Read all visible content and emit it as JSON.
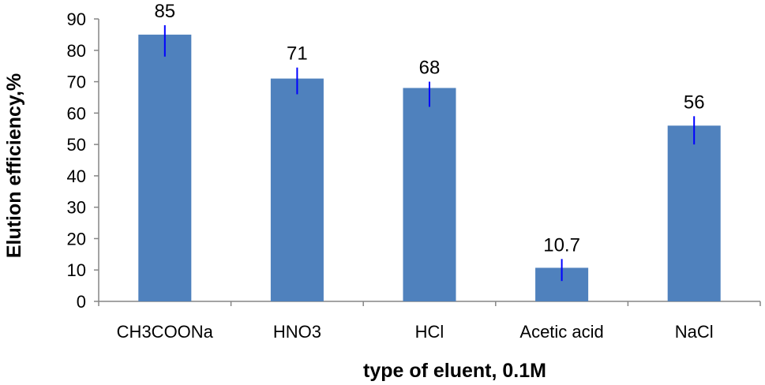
{
  "chart_data": {
    "type": "bar",
    "title": "",
    "xlabel": "type of eluent, 0.1M",
    "ylabel": "Elution efficiency,%",
    "categories": [
      "CH3COONa",
      "HNO3",
      "HCl",
      "Acetic acid",
      "NaCl"
    ],
    "values": [
      85,
      71,
      68,
      10.7,
      56
    ],
    "data_labels": [
      "85",
      "71",
      "68",
      "10.7",
      "56"
    ],
    "error_bars": [
      {
        "low": 78,
        "high": 88
      },
      {
        "low": 66,
        "high": 74.5
      },
      {
        "low": 62,
        "high": 70
      },
      {
        "low": 6.5,
        "high": 13.5
      },
      {
        "low": 50,
        "high": 59
      }
    ],
    "ylim": [
      0,
      90
    ],
    "yticks": [
      0,
      10,
      20,
      30,
      40,
      50,
      60,
      70,
      80,
      90
    ],
    "grid": false,
    "legend": "none",
    "colors": {
      "bar": "#4f81bd",
      "error_bar": "#0000ff",
      "axis": "#868686"
    }
  }
}
